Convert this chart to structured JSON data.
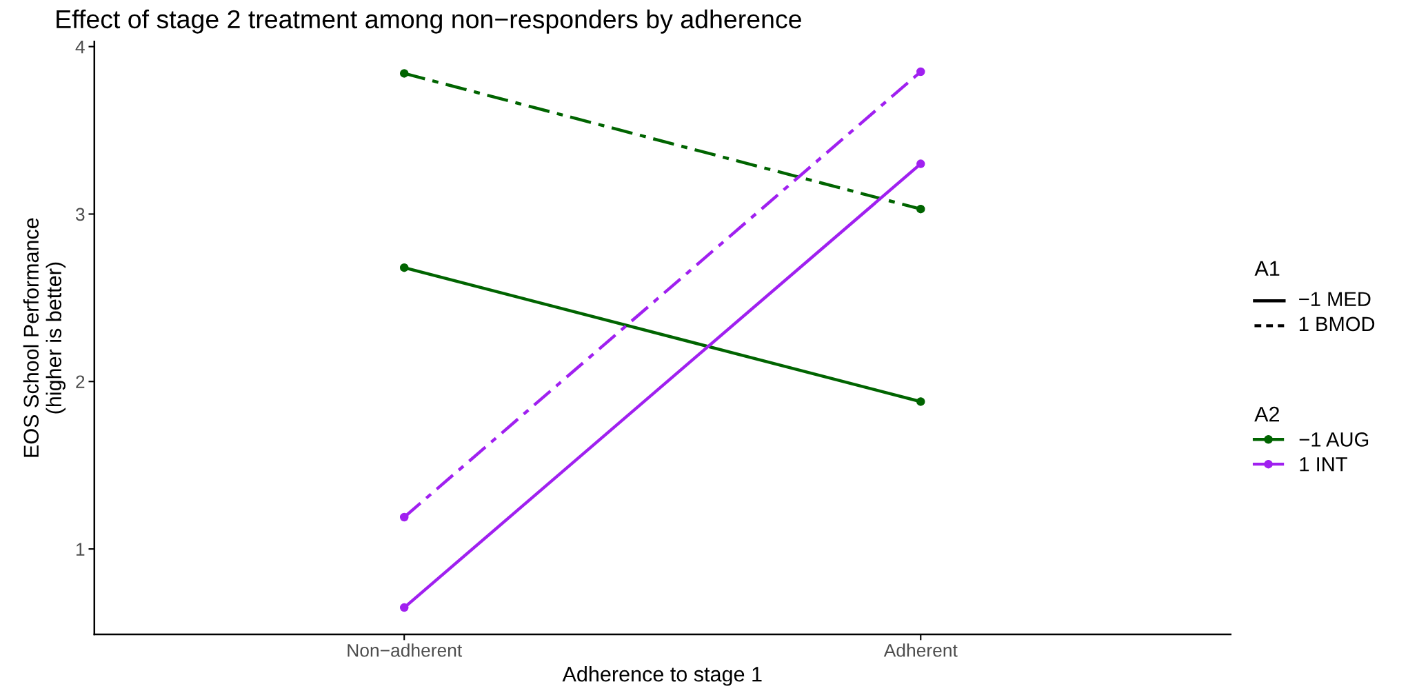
{
  "chart_data": {
    "type": "line",
    "title": "Effect of stage 2 treatment among non−responders by adherence",
    "xlabel": "Adherence to stage 1",
    "ylabel": "EOS School Performance\n(higher is better)",
    "categories": [
      "Non−adherent",
      "Adherent"
    ],
    "series": [
      {
        "name": "−1 AUG",
        "color": "#006400",
        "line_style": "solid",
        "values": [
          2.68,
          1.88
        ]
      },
      {
        "color": "#006400",
        "line_style": "dashed",
        "values": [
          3.84,
          3.03
        ]
      },
      {
        "name": "1 INT",
        "color": "#a020f0",
        "line_style": "solid",
        "values": [
          0.65,
          3.3
        ]
      },
      {
        "color": "#a020f0",
        "line_style": "dashed",
        "values": [
          1.19,
          3.85
        ]
      }
    ],
    "legend_title": "A2",
    "annotations": [
      "A1",
      "−1 MED",
      "1 BMOD"
    ],
    "legend": "right",
    "marker": "circle",
    "grid": false,
    "ylim": [
      0.49,
      4.03
    ],
    "yticks": [
      1,
      2,
      3,
      4
    ]
  }
}
